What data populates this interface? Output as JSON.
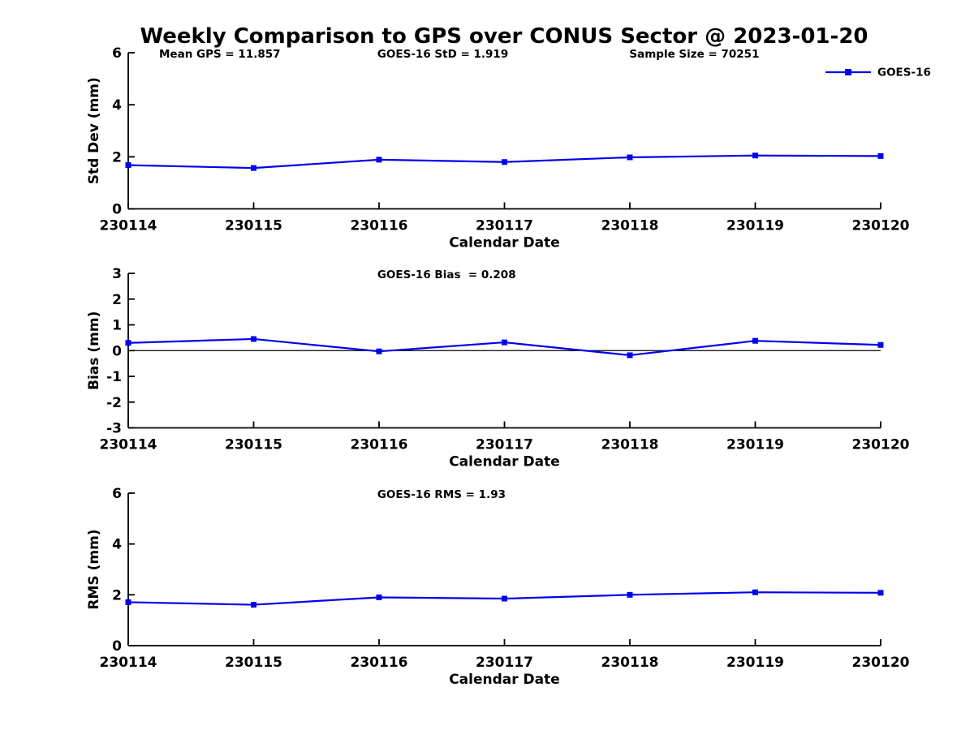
{
  "figure_title": "Weekly Comparison to GPS over CONUS Sector @ 2023-01-20",
  "colors": {
    "series": "#0000EE",
    "axis": "#000000",
    "text": "#000000",
    "background": "#FFFFFF"
  },
  "legend": {
    "label": "GOES-16",
    "position": "top-right-above-axes"
  },
  "chart_data": [
    {
      "type": "line",
      "title": "",
      "xlabel": "Calendar Date",
      "ylabel": "Std Dev (mm)",
      "categories": [
        "230114",
        "230115",
        "230116",
        "230117",
        "230118",
        "230119",
        "230120"
      ],
      "series": [
        {
          "name": "GOES-16",
          "color": "#0000EE",
          "marker": "square",
          "values": [
            1.68,
            1.57,
            1.89,
            1.8,
            1.98,
            2.05,
            2.03
          ]
        }
      ],
      "ylim": [
        0,
        6
      ],
      "yticks": [
        0,
        2,
        4,
        6
      ],
      "grid": false,
      "zero_line": false,
      "legend_entries": [
        "GOES-16"
      ],
      "annotations": [
        "Mean GPS = 11.857",
        "GOES-16 StD = 1.919",
        "Sample Size = 70251"
      ]
    },
    {
      "type": "line",
      "title": "",
      "xlabel": "Calendar Date",
      "ylabel": "Bias (mm)",
      "categories": [
        "230114",
        "230115",
        "230116",
        "230117",
        "230118",
        "230119",
        "230120"
      ],
      "series": [
        {
          "name": "GOES-16",
          "color": "#0000EE",
          "marker": "square",
          "values": [
            0.3,
            0.45,
            -0.03,
            0.32,
            -0.18,
            0.38,
            0.22
          ]
        }
      ],
      "ylim": [
        -3,
        3
      ],
      "yticks": [
        -3,
        -2,
        -1,
        0,
        1,
        2,
        3
      ],
      "grid": false,
      "zero_line": true,
      "legend_entries": [],
      "annotations": [
        "GOES-16 Bias  = 0.208"
      ]
    },
    {
      "type": "line",
      "title": "",
      "xlabel": "Calendar Date",
      "ylabel": "RMS (mm)",
      "categories": [
        "230114",
        "230115",
        "230116",
        "230117",
        "230118",
        "230119",
        "230120"
      ],
      "series": [
        {
          "name": "GOES-16",
          "color": "#0000EE",
          "marker": "square",
          "values": [
            1.71,
            1.61,
            1.9,
            1.85,
            2.0,
            2.1,
            2.08
          ]
        }
      ],
      "ylim": [
        0,
        6
      ],
      "yticks": [
        0,
        2,
        4,
        6
      ],
      "grid": false,
      "zero_line": false,
      "legend_entries": [],
      "annotations": [
        "GOES-16 RMS = 1.93"
      ]
    }
  ]
}
